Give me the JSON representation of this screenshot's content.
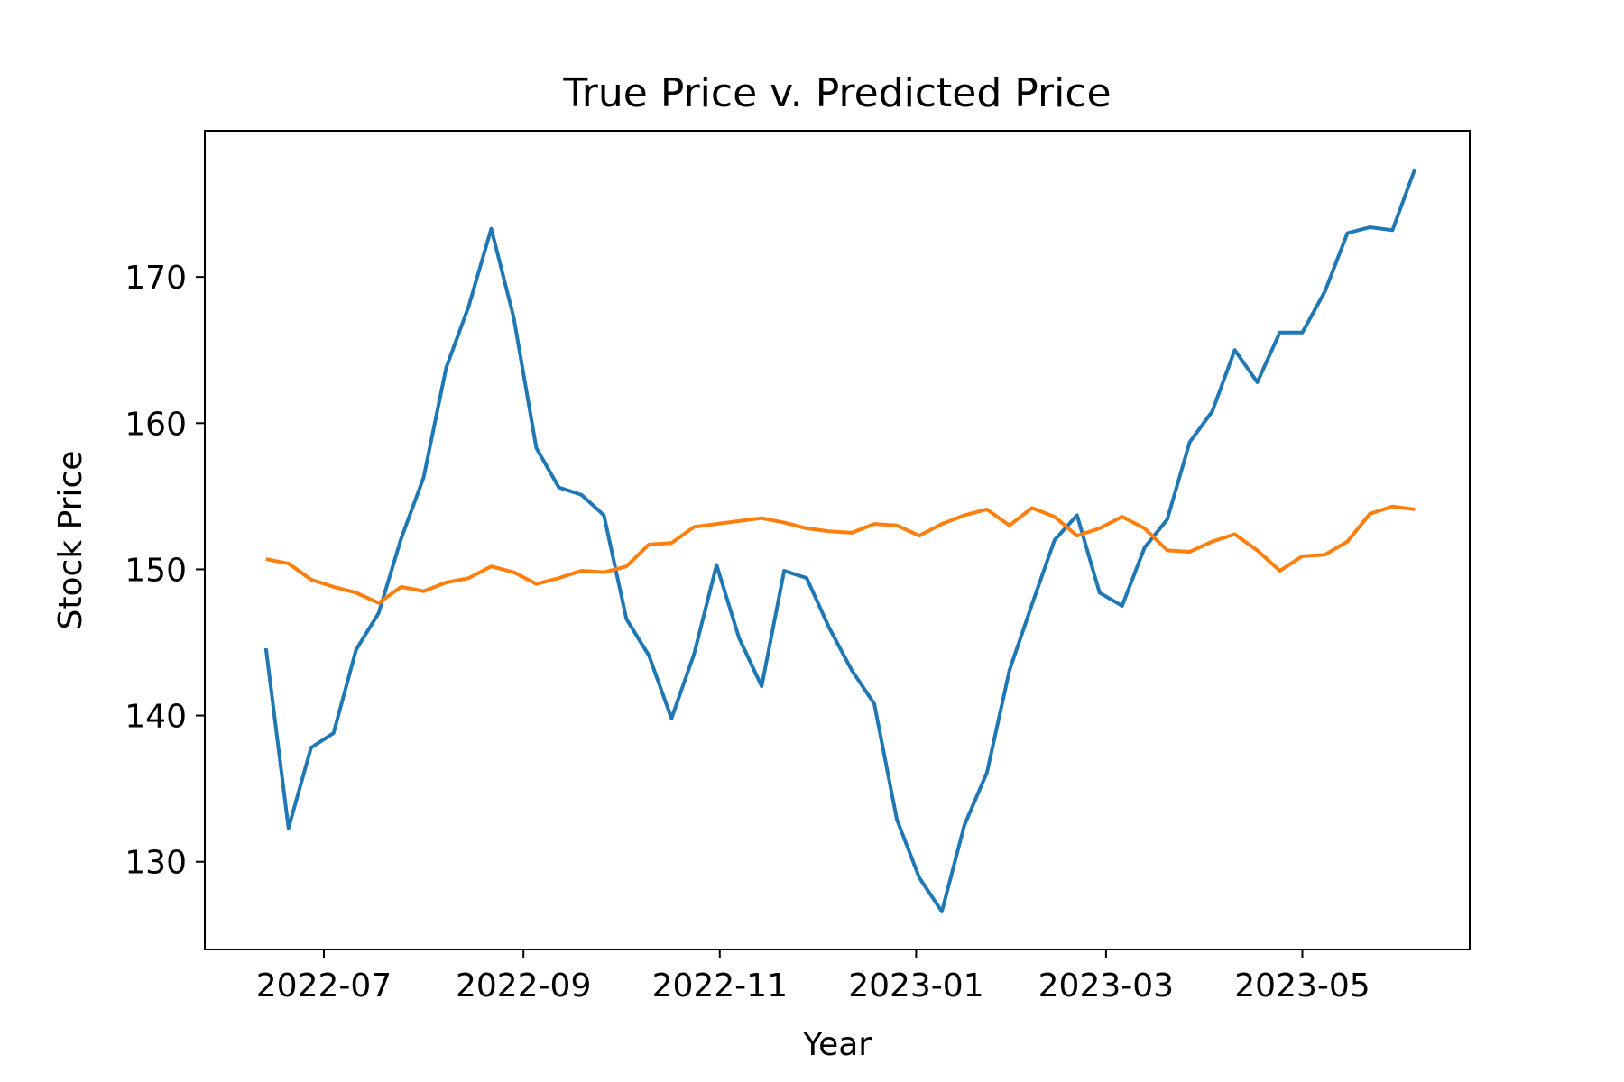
{
  "chart_data": {
    "type": "line",
    "title": "True Price v. Predicted Price",
    "xlabel": "Year",
    "ylabel": "Stock Price",
    "x_tick_labels": [
      "2022-07",
      "2022-09",
      "2022-11",
      "2023-01",
      "2023-03",
      "2023-05"
    ],
    "y_tick_labels": [
      "130",
      "140",
      "150",
      "160",
      "170"
    ],
    "y_ticks": [
      130,
      140,
      150,
      160,
      170
    ],
    "ylim": [
      124.0,
      180.0
    ],
    "xlim": [
      "2022-05-25",
      "2023-06-22"
    ],
    "grid": false,
    "legend": "none",
    "x": [
      "2022-06-13",
      "2022-06-20",
      "2022-06-27",
      "2022-07-04",
      "2022-07-11",
      "2022-07-18",
      "2022-07-25",
      "2022-08-01",
      "2022-08-08",
      "2022-08-15",
      "2022-08-22",
      "2022-08-29",
      "2022-09-05",
      "2022-09-12",
      "2022-09-19",
      "2022-09-26",
      "2022-10-03",
      "2022-10-10",
      "2022-10-17",
      "2022-10-24",
      "2022-10-31",
      "2022-11-07",
      "2022-11-14",
      "2022-11-21",
      "2022-11-28",
      "2022-12-05",
      "2022-12-12",
      "2022-12-19",
      "2022-12-26",
      "2023-01-02",
      "2023-01-09",
      "2023-01-16",
      "2023-01-23",
      "2023-01-30",
      "2023-02-06",
      "2023-02-13",
      "2023-02-20",
      "2023-02-27",
      "2023-03-06",
      "2023-03-13",
      "2023-03-20",
      "2023-03-27",
      "2023-04-03",
      "2023-04-10",
      "2023-04-17",
      "2023-04-24",
      "2023-05-01",
      "2023-05-08",
      "2023-05-15",
      "2023-05-22",
      "2023-05-29",
      "2023-06-05"
    ],
    "series": [
      {
        "color": "#1f77b4",
        "values": [
          144.6,
          132.3,
          137.8,
          138.8,
          144.5,
          147.0,
          152.1,
          156.3,
          163.8,
          168.0,
          173.3,
          167.2,
          158.3,
          155.6,
          155.1,
          153.7,
          146.6,
          144.1,
          139.8,
          144.2,
          150.3,
          145.3,
          142.0,
          149.9,
          149.4,
          146.0,
          143.1,
          140.8,
          132.9,
          128.9,
          126.6,
          132.5,
          136.1,
          143.1,
          147.6,
          152.0,
          153.7,
          148.4,
          147.5,
          151.5,
          153.4,
          158.7,
          160.8,
          165.0,
          162.8,
          166.2,
          166.2,
          169.0,
          173.0,
          173.4,
          173.2,
          177.4
        ]
      },
      {
        "color": "#ff7f0e",
        "values": [
          150.7,
          150.4,
          149.3,
          148.8,
          148.4,
          147.7,
          148.8,
          148.5,
          149.1,
          149.4,
          150.2,
          149.8,
          149.0,
          149.4,
          149.9,
          149.8,
          150.2,
          151.7,
          151.8,
          152.9,
          153.1,
          153.3,
          153.5,
          153.2,
          152.8,
          152.6,
          152.5,
          153.1,
          153.0,
          152.3,
          153.1,
          153.7,
          154.1,
          153.0,
          154.2,
          153.6,
          152.3,
          152.8,
          153.6,
          152.8,
          151.3,
          151.2,
          151.9,
          152.4,
          151.3,
          149.9,
          150.9,
          151.0,
          151.9,
          153.8,
          154.3,
          154.1
        ]
      }
    ]
  }
}
